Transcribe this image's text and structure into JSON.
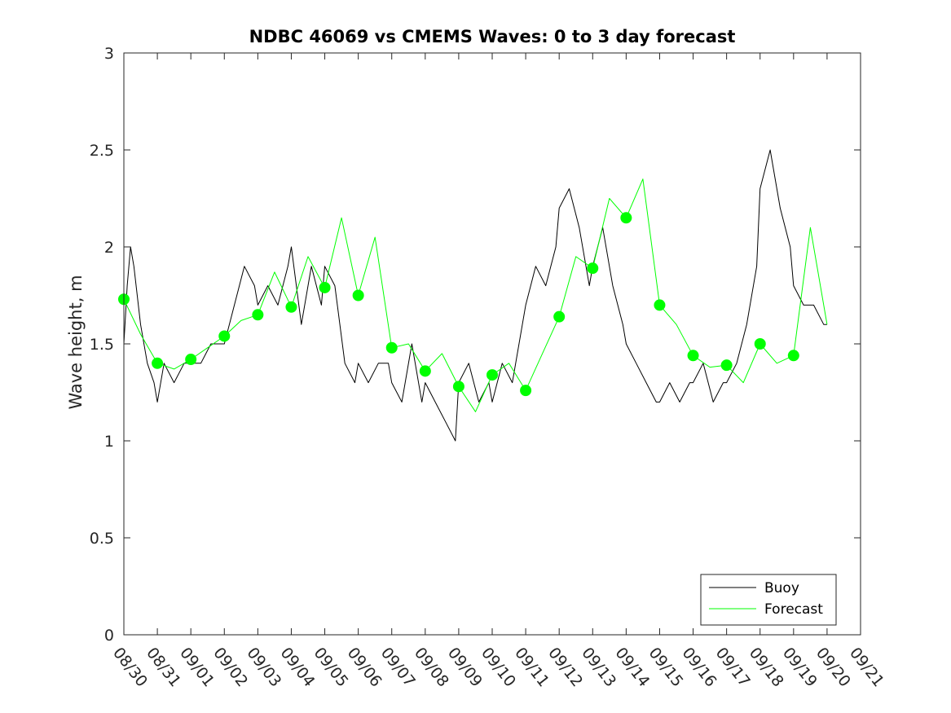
{
  "chart_data": {
    "type": "line",
    "title": "NDBC 46069 vs CMEMS Waves: 0 to 3 day forecast",
    "xlabel": "",
    "ylabel": "Wave height, m",
    "xlim": [
      0,
      22
    ],
    "ylim": [
      0,
      3
    ],
    "x_tick_labels": [
      "08/30",
      "08/31",
      "09/01",
      "09/02",
      "09/03",
      "09/04",
      "09/05",
      "09/06",
      "09/07",
      "09/08",
      "09/09",
      "09/10",
      "09/11",
      "09/12",
      "09/13",
      "09/14",
      "09/15",
      "09/16",
      "09/17",
      "09/18",
      "09/19",
      "09/20",
      "09/21"
    ],
    "y_ticks": [
      0,
      0.5,
      1,
      1.5,
      2,
      2.5,
      3
    ],
    "y_tick_labels": [
      "0",
      "0.5",
      "1",
      "1.5",
      "2",
      "2.5",
      "3"
    ],
    "legend": {
      "position": "bottom-right",
      "entries": [
        {
          "label": "Buoy",
          "color": "#000000"
        },
        {
          "label": "Forecast",
          "color": "#00ff00"
        }
      ]
    },
    "series": [
      {
        "name": "Buoy",
        "color": "#000000",
        "x": [
          0,
          0.1,
          0.2,
          0.3,
          0.5,
          0.7,
          0.9,
          1.0,
          1.2,
          1.5,
          1.8,
          2.0,
          2.3,
          2.6,
          2.9,
          3.0,
          3.3,
          3.6,
          3.9,
          4.0,
          4.3,
          4.6,
          4.9,
          5.0,
          5.3,
          5.6,
          5.9,
          6.0,
          6.3,
          6.6,
          6.9,
          7.0,
          7.3,
          7.6,
          7.9,
          8.0,
          8.3,
          8.6,
          8.9,
          9.0,
          9.3,
          9.6,
          9.9,
          10.0,
          10.3,
          10.6,
          10.9,
          11.0,
          11.3,
          11.6,
          11.9,
          12.0,
          12.3,
          12.6,
          12.9,
          13.0,
          13.3,
          13.6,
          13.9,
          14.0,
          14.3,
          14.6,
          14.9,
          15.0,
          15.3,
          15.6,
          15.9,
          16.0,
          16.3,
          16.6,
          16.9,
          17.0,
          17.3,
          17.6,
          17.9,
          18.0,
          18.3,
          18.6,
          18.9,
          19.0,
          19.3,
          19.6,
          19.9,
          20.0,
          20.3,
          20.6,
          20.9,
          21.0
        ],
        "y": [
          1.5,
          1.8,
          2.0,
          1.9,
          1.6,
          1.4,
          1.3,
          1.2,
          1.4,
          1.3,
          1.4,
          1.4,
          1.4,
          1.5,
          1.5,
          1.5,
          1.7,
          1.9,
          1.8,
          1.7,
          1.8,
          1.7,
          1.9,
          2.0,
          1.6,
          1.9,
          1.7,
          1.9,
          1.8,
          1.4,
          1.3,
          1.4,
          1.3,
          1.4,
          1.4,
          1.3,
          1.2,
          1.5,
          1.2,
          1.3,
          1.2,
          1.1,
          1.0,
          1.3,
          1.4,
          1.2,
          1.3,
          1.2,
          1.4,
          1.3,
          1.6,
          1.7,
          1.9,
          1.8,
          2.0,
          2.2,
          2.3,
          2.1,
          1.8,
          1.9,
          2.1,
          1.8,
          1.6,
          1.5,
          1.4,
          1.3,
          1.2,
          1.2,
          1.3,
          1.2,
          1.3,
          1.3,
          1.4,
          1.2,
          1.3,
          1.3,
          1.4,
          1.6,
          1.9,
          2.3,
          2.5,
          2.2,
          2.0,
          1.8,
          1.7,
          1.7,
          1.6,
          1.6
        ]
      },
      {
        "name": "Forecast",
        "color": "#00ff00",
        "x": [
          0,
          0.5,
          1.0,
          1.5,
          2.0,
          2.5,
          3.0,
          3.5,
          4.0,
          4.5,
          5.0,
          5.5,
          6.0,
          6.5,
          7.0,
          7.5,
          8.0,
          8.5,
          9.0,
          9.5,
          10.0,
          10.5,
          11.0,
          11.5,
          12.0,
          12.5,
          13.0,
          13.5,
          14.0,
          14.5,
          15.0,
          15.5,
          16.0,
          16.5,
          17.0,
          17.5,
          18.0,
          18.5,
          19.0,
          19.5,
          20.0,
          20.5,
          21.0
        ],
        "y": [
          1.73,
          1.55,
          1.4,
          1.37,
          1.42,
          1.48,
          1.54,
          1.62,
          1.65,
          1.87,
          1.69,
          1.95,
          1.79,
          2.15,
          1.75,
          2.05,
          1.48,
          1.5,
          1.36,
          1.45,
          1.28,
          1.15,
          1.34,
          1.4,
          1.26,
          1.45,
          1.64,
          1.95,
          1.89,
          2.25,
          2.15,
          2.35,
          1.7,
          1.6,
          1.44,
          1.38,
          1.39,
          1.3,
          1.5,
          1.4,
          1.44,
          2.1,
          1.6
        ]
      }
    ],
    "markers": {
      "name": "Forecast start points",
      "x": [
        0,
        1,
        2,
        3,
        4,
        5,
        6,
        7,
        8,
        9,
        10,
        11,
        12,
        13,
        14,
        15,
        16,
        17,
        18,
        19,
        20
      ],
      "y": [
        1.73,
        1.4,
        1.42,
        1.54,
        1.65,
        1.69,
        1.79,
        1.75,
        1.48,
        1.36,
        1.28,
        1.34,
        1.26,
        1.64,
        1.89,
        2.15,
        1.7,
        1.44,
        1.39,
        1.5,
        1.44
      ]
    }
  }
}
